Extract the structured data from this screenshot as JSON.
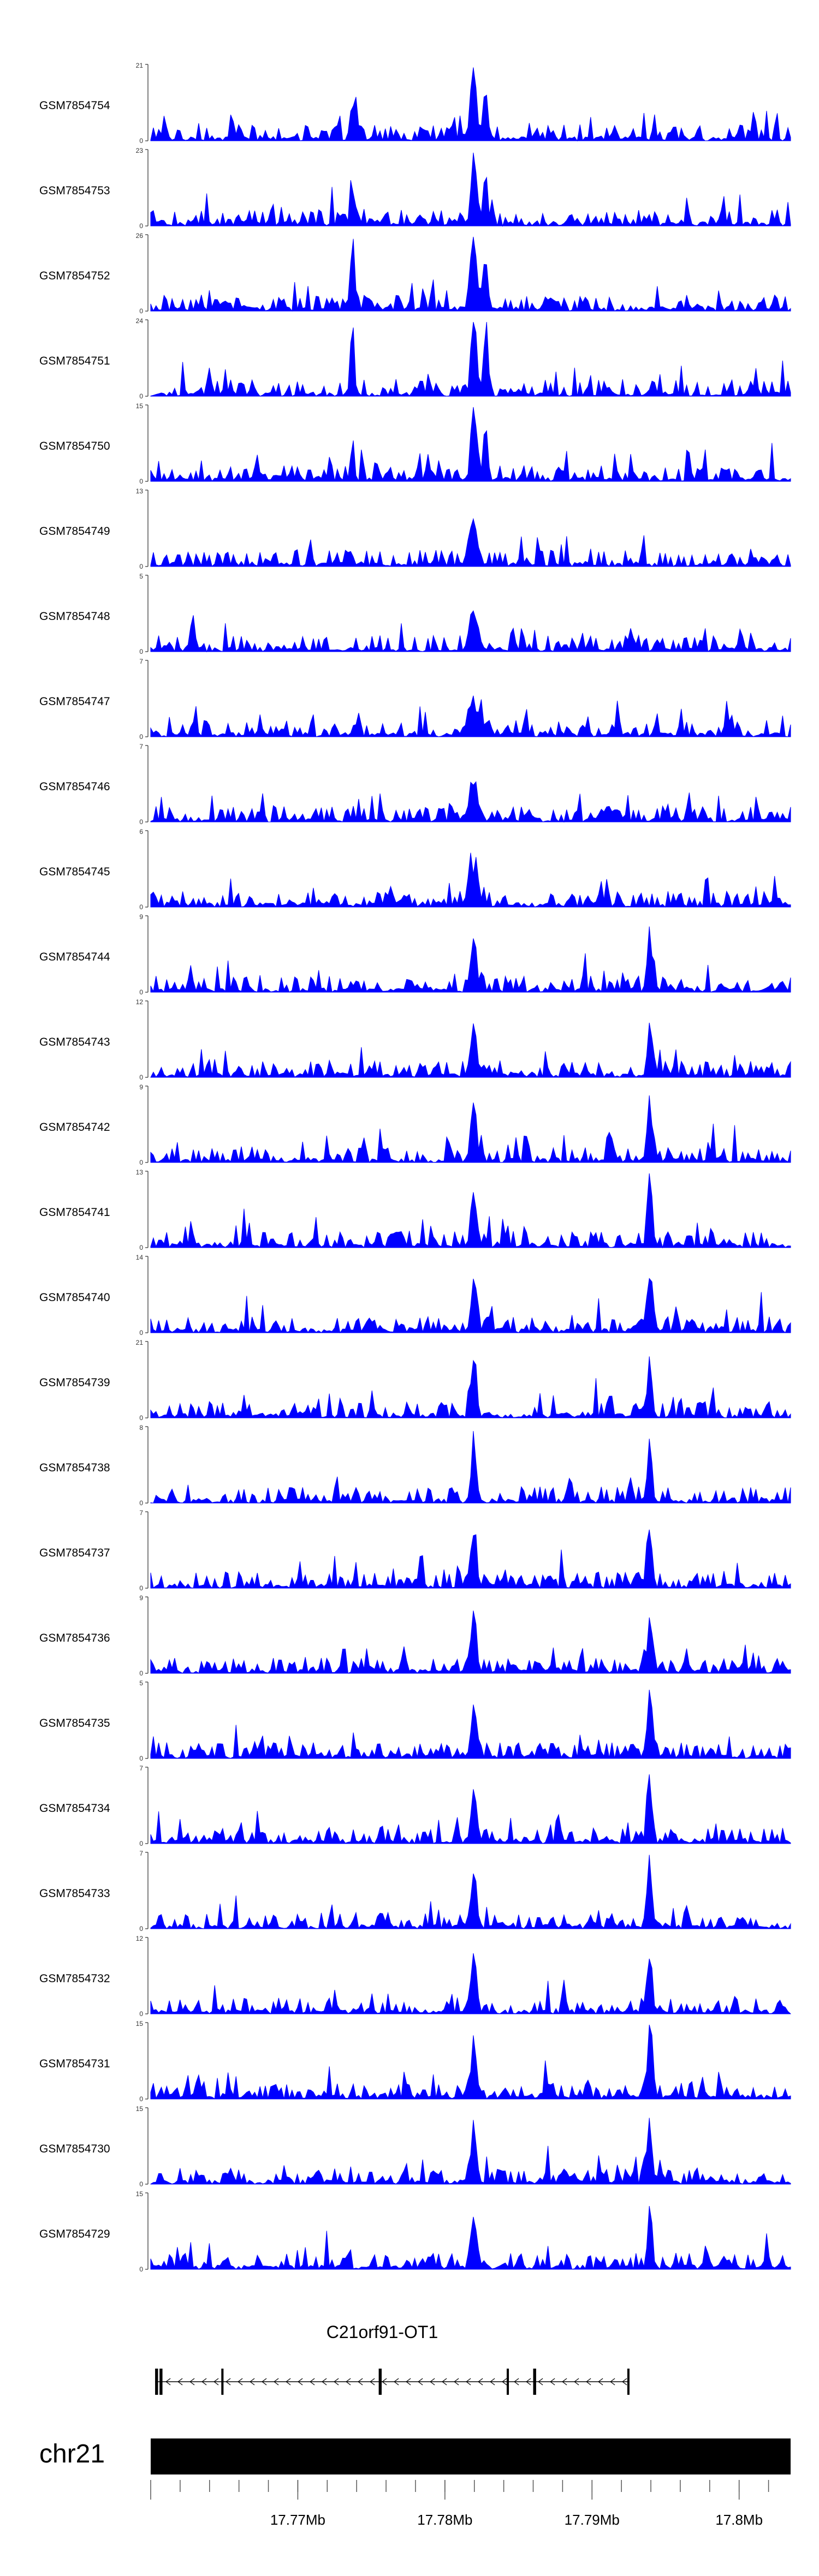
{
  "chart_data": {
    "type": "area",
    "title": "",
    "chromosome": "chr21",
    "region": {
      "start": 17760000,
      "end": 17803500
    },
    "tracks": [
      {
        "name": "GSM7854754",
        "ymax": 21,
        "ymin": 0
      },
      {
        "name": "GSM7854753",
        "ymax": 23,
        "ymin": 0
      },
      {
        "name": "GSM7854752",
        "ymax": 26,
        "ymin": 0
      },
      {
        "name": "GSM7854751",
        "ymax": 24,
        "ymin": 0
      },
      {
        "name": "GSM7854750",
        "ymax": 15,
        "ymin": 0
      },
      {
        "name": "GSM7854749",
        "ymax": 13,
        "ymin": 0
      },
      {
        "name": "GSM7854748",
        "ymax": 5,
        "ymin": 0
      },
      {
        "name": "GSM7854747",
        "ymax": 7,
        "ymin": 0
      },
      {
        "name": "GSM7854746",
        "ymax": 7,
        "ymin": 0
      },
      {
        "name": "GSM7854745",
        "ymax": 6,
        "ymin": 0
      },
      {
        "name": "GSM7854744",
        "ymax": 9,
        "ymin": 0
      },
      {
        "name": "GSM7854743",
        "ymax": 12,
        "ymin": 0
      },
      {
        "name": "GSM7854742",
        "ymax": 9,
        "ymin": 0
      },
      {
        "name": "GSM7854741",
        "ymax": 13,
        "ymin": 0
      },
      {
        "name": "GSM7854740",
        "ymax": 14,
        "ymin": 0
      },
      {
        "name": "GSM7854739",
        "ymax": 21,
        "ymin": 0
      },
      {
        "name": "GSM7854738",
        "ymax": 8,
        "ymin": 0
      },
      {
        "name": "GSM7854737",
        "ymax": 7,
        "ymin": 0
      },
      {
        "name": "GSM7854736",
        "ymax": 9,
        "ymin": 0
      },
      {
        "name": "GSM7854735",
        "ymax": 5,
        "ymin": 0
      },
      {
        "name": "GSM7854734",
        "ymax": 7,
        "ymin": 0
      },
      {
        "name": "GSM7854733",
        "ymax": 7,
        "ymin": 0
      },
      {
        "name": "GSM7854732",
        "ymax": 12,
        "ymin": 0
      },
      {
        "name": "GSM7854731",
        "ymax": 15,
        "ymin": 0
      },
      {
        "name": "GSM7854730",
        "ymax": 15,
        "ymin": 0
      },
      {
        "name": "GSM7854729",
        "ymax": 15,
        "ymin": 0
      }
    ],
    "gene": {
      "name": "C21orf91-OT1",
      "strand": "-",
      "start": 17760300,
      "end": 17792500,
      "exons": [
        {
          "start": 17760300,
          "end": 17760500
        },
        {
          "start": 17760600,
          "end": 17760800
        },
        {
          "start": 17764800,
          "end": 17764950
        },
        {
          "start": 17775500,
          "end": 17775700
        },
        {
          "start": 17784200,
          "end": 17784350
        },
        {
          "start": 17786000,
          "end": 17786200
        },
        {
          "start": 17792400,
          "end": 17792500
        }
      ]
    },
    "ruler": {
      "tick_values": [
        17760000,
        17770000,
        17780000,
        17790000,
        17800000
      ],
      "tick_labels": [
        "",
        "17.77Mb",
        "17.78Mb",
        "17.79Mb",
        "17.8Mb"
      ],
      "minor_tick_step": 2000
    },
    "colors": {
      "signal": "#0000ff",
      "axis": "#555555",
      "text": "#000000"
    }
  }
}
